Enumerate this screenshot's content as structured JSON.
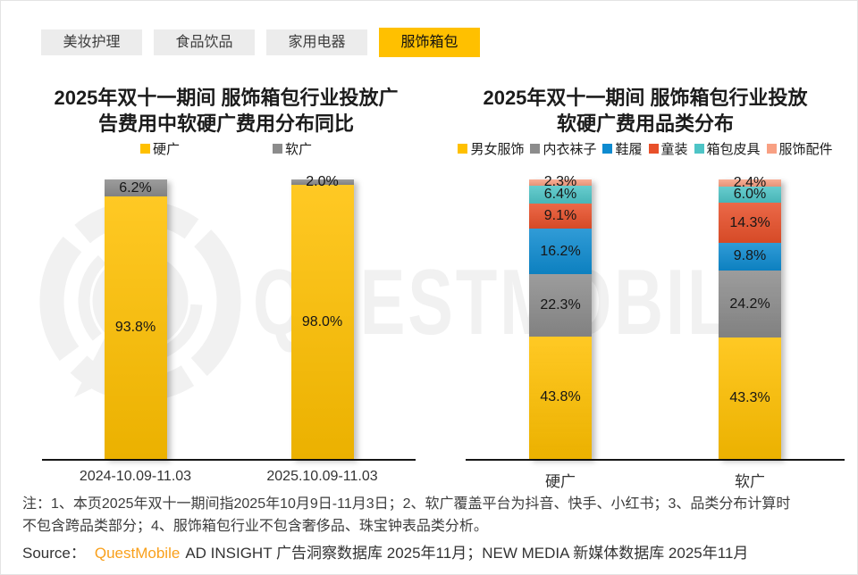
{
  "tabs": [
    {
      "id": "beauty-care",
      "label": "美妆护理",
      "active": false
    },
    {
      "id": "food-beverage",
      "label": "食品饮品",
      "active": false
    },
    {
      "id": "home-appliances",
      "label": "家用电器",
      "active": false
    },
    {
      "id": "apparel-bags",
      "label": "服饰箱包",
      "active": true
    }
  ],
  "watermark": {
    "text": "QUESTMOBILE"
  },
  "chart_data": [
    {
      "type": "bar",
      "stacked": true,
      "title_lines": [
        "2025年双十一期间 服饰箱包行业投放广",
        "告费用中软硬广费用分布同比"
      ],
      "categories": [
        "2024-10.09-11.03",
        "2025.10.09-11.03"
      ],
      "series": [
        {
          "name": "硬广",
          "color": "#FFC000",
          "values": [
            93.8,
            98.0
          ]
        },
        {
          "name": "软广",
          "color": "#8C8C8C",
          "values": [
            6.2,
            2.0
          ]
        }
      ],
      "value_suffix": "%",
      "ylim": [
        0,
        100
      ],
      "legend_position": "top",
      "grid": false
    },
    {
      "type": "bar",
      "stacked": true,
      "title_lines": [
        "2025年双十一期间 服饰箱包行业投放",
        "软硬广费用品类分布"
      ],
      "categories": [
        "硬广",
        "软广"
      ],
      "series": [
        {
          "name": "男女服饰",
          "color": "#FFC000",
          "values": [
            43.8,
            43.3
          ]
        },
        {
          "name": "内衣袜子",
          "color": "#8C8C8C",
          "values": [
            22.3,
            24.2
          ]
        },
        {
          "name": "鞋履",
          "color": "#0E8BD0",
          "values": [
            16.2,
            9.8
          ]
        },
        {
          "name": "童装",
          "color": "#E8502A",
          "values": [
            9.1,
            14.3
          ]
        },
        {
          "name": "箱包皮具",
          "color": "#4EC4C6",
          "values": [
            6.4,
            6.0
          ]
        },
        {
          "name": "服饰配件",
          "color": "#F8A083",
          "values": [
            2.3,
            2.4
          ]
        }
      ],
      "value_suffix": "%",
      "ylim": [
        0,
        100
      ],
      "legend_position": "top",
      "grid": false
    }
  ],
  "notes": {
    "lines": [
      "注：1、本页2025年双十一期间指2025年10月9日-11月3日；2、软广覆盖平台为抖音、快手、小红书；3、品类分布计算时",
      "不包含跨品类部分；4、服饰箱包行业不包含奢侈品、珠宝钟表品类分析。"
    ]
  },
  "source": {
    "prefix": "Source：",
    "brand": "QuestMobile",
    "detail": "AD INSIGHT 广告洞察数据库 2025年11月；NEW MEDIA 新媒体数据库 2025年11月"
  }
}
